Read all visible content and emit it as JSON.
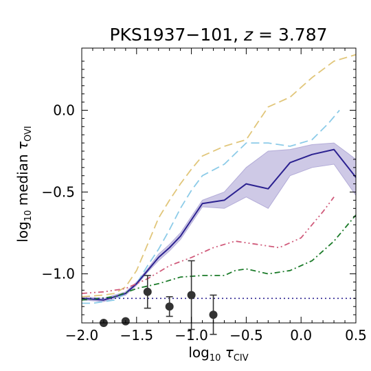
{
  "chart_data": {
    "type": "line",
    "title_main": "PKS1937−101, ",
    "title_z": "z",
    "title_eq": " = 3.787",
    "xlabel_log": "log",
    "xlabel_sub": "10",
    "xlabel_tau": " τ",
    "xlabel_ion": "CIV",
    "ylabel_log": "log",
    "ylabel_sub": "10",
    "ylabel_mid": " median ",
    "ylabel_tau": "τ",
    "ylabel_ion": "OVI",
    "xlim": [
      -2.0,
      0.5
    ],
    "ylim": [
      -1.3,
      0.38
    ],
    "xticks": [
      -2.0,
      -1.5,
      -1.0,
      -0.5,
      0.0,
      0.5
    ],
    "xtick_labels": [
      "−2.0",
      "−1.5",
      "−1.0",
      "−0.5",
      "0.0",
      "0.5"
    ],
    "yticks": [
      0.0,
      -0.5,
      -1.0
    ],
    "ytick_labels": [
      "0.0",
      "−0.5",
      "−1.0"
    ],
    "colors": {
      "median": "#2b2190",
      "band": "#b3acd8",
      "gold": "#e1c67a",
      "skyblue": "#8ccbe8",
      "pink": "#d05a7a",
      "green": "#1a7a28",
      "points": "#333333",
      "baseline": "#2b2190"
    },
    "series": [
      {
        "key": "gold_dash",
        "style": "dashed",
        "color_key": "gold",
        "x": [
          -2.0,
          -1.8,
          -1.7,
          -1.6,
          -1.5,
          -1.4,
          -1.3,
          -1.2,
          -1.1,
          -1.0,
          -0.9,
          -0.7,
          -0.5,
          -0.3,
          -0.1,
          0.1,
          0.3,
          0.5
        ],
        "y": [
          -1.14,
          -1.13,
          -1.12,
          -1.08,
          -0.98,
          -0.82,
          -0.66,
          -0.55,
          -0.45,
          -0.36,
          -0.28,
          -0.22,
          -0.18,
          0.02,
          0.08,
          0.2,
          0.3,
          0.34
        ]
      },
      {
        "key": "sky_dash",
        "style": "dashed",
        "color_key": "skyblue",
        "x": [
          -2.0,
          -1.9,
          -1.8,
          -1.7,
          -1.6,
          -1.5,
          -1.4,
          -1.3,
          -1.2,
          -1.1,
          -1.0,
          -0.9,
          -0.7,
          -0.5,
          -0.3,
          -0.1,
          0.1,
          0.25,
          0.35
        ],
        "y": [
          -1.18,
          -1.18,
          -1.17,
          -1.16,
          -1.12,
          -1.06,
          -0.95,
          -0.85,
          -0.73,
          -0.6,
          -0.49,
          -0.4,
          -0.33,
          -0.2,
          -0.2,
          -0.22,
          -0.18,
          -0.08,
          0.0
        ]
      },
      {
        "key": "median",
        "style": "solid",
        "color_key": "median",
        "x": [
          -2.0,
          -1.8,
          -1.7,
          -1.6,
          -1.5,
          -1.4,
          -1.3,
          -1.2,
          -1.1,
          -1.0,
          -0.9,
          -0.7,
          -0.5,
          -0.3,
          -0.1,
          0.1,
          0.3,
          0.5
        ],
        "y": [
          -1.15,
          -1.16,
          -1.14,
          -1.12,
          -1.06,
          -0.98,
          -0.9,
          -0.84,
          -0.77,
          -0.67,
          -0.57,
          -0.55,
          -0.45,
          -0.48,
          -0.32,
          -0.27,
          -0.24,
          -0.41
        ]
      },
      {
        "key": "pink_dashdot",
        "style": "dashdotdot",
        "color_key": "pink",
        "x": [
          -2.0,
          -1.8,
          -1.6,
          -1.4,
          -1.2,
          -1.0,
          -0.8,
          -0.6,
          -0.4,
          -0.2,
          0.0,
          0.2,
          0.3
        ],
        "y": [
          -1.12,
          -1.11,
          -1.09,
          -1.03,
          -0.95,
          -0.9,
          -0.84,
          -0.8,
          -0.82,
          -0.84,
          -0.78,
          -0.62,
          -0.53
        ]
      },
      {
        "key": "green_dashdot",
        "style": "dashdot",
        "color_key": "green",
        "x": [
          -2.0,
          -1.7,
          -1.5,
          -1.3,
          -1.1,
          -0.9,
          -0.7,
          -0.6,
          -0.5,
          -0.3,
          -0.1,
          0.1,
          0.3,
          0.5
        ],
        "y": [
          -1.16,
          -1.14,
          -1.09,
          -1.06,
          -1.02,
          -1.01,
          -1.01,
          -0.98,
          -0.97,
          -1.0,
          -0.98,
          -0.92,
          -0.8,
          -0.64
        ]
      },
      {
        "key": "baseline_dot",
        "style": "dotted",
        "color_key": "baseline",
        "x": [
          -2.0,
          0.5
        ],
        "y": [
          -1.15,
          -1.15
        ]
      }
    ],
    "band": {
      "x": [
        -2.0,
        -1.8,
        -1.7,
        -1.6,
        -1.5,
        -1.4,
        -1.3,
        -1.2,
        -1.1,
        -1.0,
        -0.9,
        -0.7,
        -0.5,
        -0.3,
        -0.1,
        0.1,
        0.3,
        0.5
      ],
      "upper": [
        -1.14,
        -1.15,
        -1.13,
        -1.11,
        -1.05,
        -0.97,
        -0.88,
        -0.82,
        -0.75,
        -0.65,
        -0.55,
        -0.5,
        -0.35,
        -0.25,
        -0.24,
        -0.21,
        -0.2,
        -0.3
      ],
      "lower": [
        -1.16,
        -1.17,
        -1.15,
        -1.13,
        -1.07,
        -0.99,
        -0.92,
        -0.86,
        -0.79,
        -0.69,
        -0.59,
        -0.6,
        -0.53,
        -0.6,
        -0.4,
        -0.35,
        -0.33,
        -0.52
      ]
    },
    "points": [
      {
        "x": -1.8,
        "y": -1.3,
        "yerr": 0
      },
      {
        "x": -1.6,
        "y": -1.29,
        "yerr": 0
      },
      {
        "x": -1.4,
        "y": -1.11,
        "yerr": 0.1
      },
      {
        "x": -1.2,
        "y": -1.2,
        "yerr": 0.06
      },
      {
        "x": -1.0,
        "y": -1.13,
        "yerr": 0.21
      },
      {
        "x": -0.8,
        "y": -1.25,
        "yerr": 0.12
      }
    ]
  }
}
